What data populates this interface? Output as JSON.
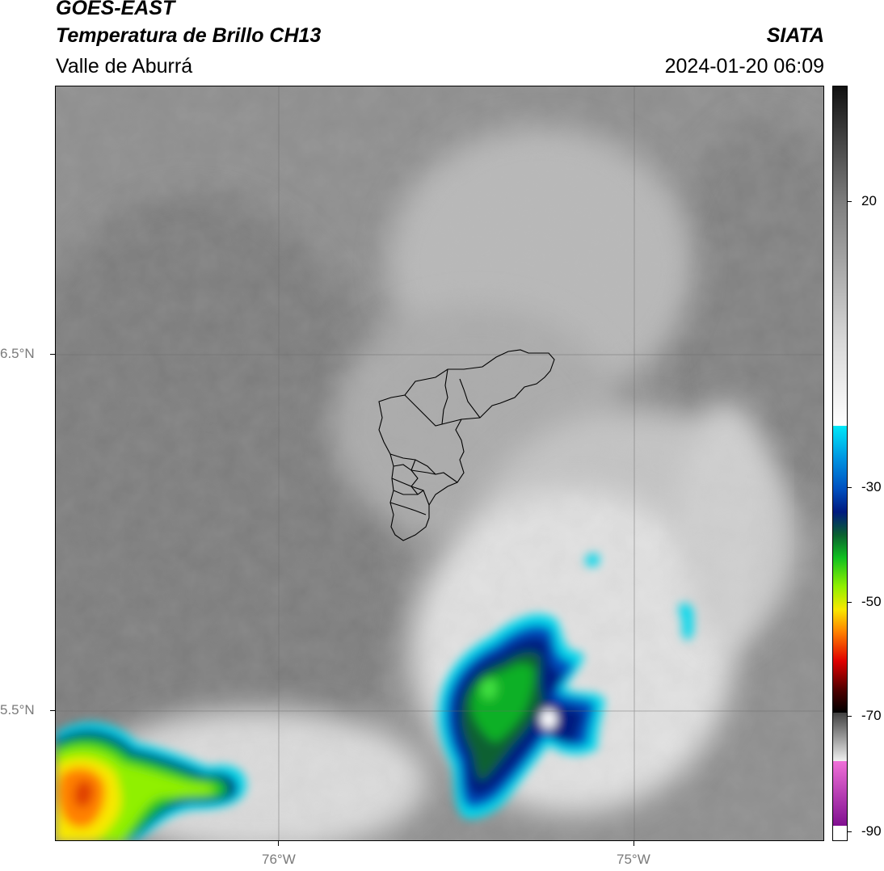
{
  "header": {
    "satellite": "GOES-EAST",
    "product": "Temperatura de Brillo CH13",
    "region": "Valle de Aburrá",
    "agency": "SIATA",
    "datetime": "2024-01-20 06:09"
  },
  "axes": {
    "lat_labels": [
      "6.5°N",
      "5.5°N"
    ],
    "lon_labels": [
      "76°W",
      "75°W"
    ]
  },
  "colorbar": {
    "ticks": [
      "20",
      "-30",
      "-50",
      "-70",
      "-90"
    ],
    "colors": {
      "cold_white": "#ffffff",
      "cyan": "#00e0f0",
      "blue": "#0050c0",
      "navy": "#001a80",
      "green": "#10c020",
      "lime": "#90f000",
      "yellow": "#f8e800",
      "orange": "#ff8000",
      "red": "#e00000",
      "magenta": "#d040c0"
    }
  }
}
